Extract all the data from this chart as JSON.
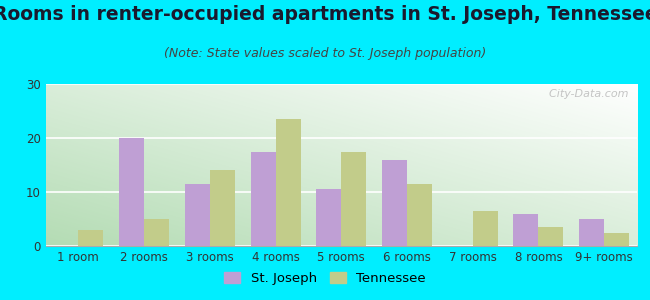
{
  "title": "Rooms in renter-occupied apartments in St. Joseph, Tennessee",
  "subtitle": "(Note: State values scaled to St. Joseph population)",
  "categories": [
    "1 room",
    "2 rooms",
    "3 rooms",
    "4 rooms",
    "5 rooms",
    "6 rooms",
    "7 rooms",
    "8 rooms",
    "9+ rooms"
  ],
  "st_joseph": [
    0,
    20,
    11.5,
    17.5,
    10.5,
    16,
    0,
    6,
    5
  ],
  "tennessee": [
    3,
    5,
    14,
    23.5,
    17.5,
    11.5,
    6.5,
    3.5,
    2.5
  ],
  "st_joseph_color": "#bf9fd4",
  "tennessee_color": "#c2cc8a",
  "background_color": "#00eeff",
  "grad_top_color": "#eef8ee",
  "grad_bottom_color": "#c8e8c8",
  "ylim": [
    0,
    30
  ],
  "yticks": [
    0,
    10,
    20,
    30
  ],
  "bar_width": 0.38,
  "watermark": "  City-Data.com",
  "title_fontsize": 13.5,
  "subtitle_fontsize": 9,
  "tick_fontsize": 8.5,
  "legend_fontsize": 9.5
}
